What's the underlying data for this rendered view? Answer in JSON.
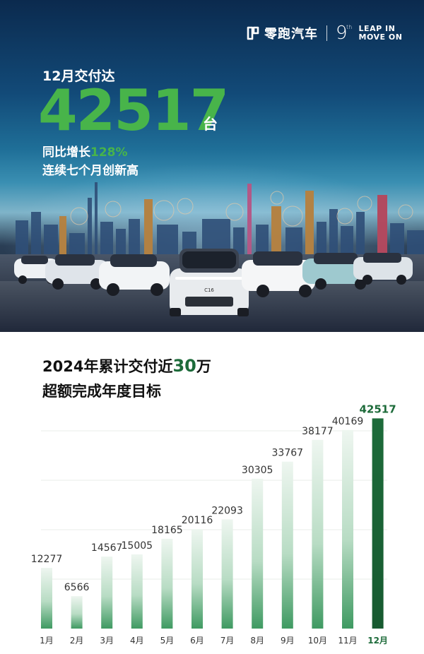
{
  "brand": {
    "name": "零跑汽车",
    "nine": "9",
    "nine_sup": "th",
    "tagline_line1": "LEAP IN",
    "tagline_line2": "MOVE ON",
    "logo_icon": "leapmotor-logo-icon"
  },
  "hero": {
    "subtitle": "12月交付达",
    "big_number": "42517",
    "unit": "台",
    "yoy_prefix": "同比增长",
    "yoy_value": "128%",
    "streak": "连续七个月创新高",
    "car_badge": "C16",
    "accent_color": "#48b44a"
  },
  "chart_section": {
    "title_prefix": "2024年累计交付近",
    "title_highlight": "30",
    "title_suffix": "万",
    "subtitle": "超额完成年度目标"
  },
  "chart_data": {
    "type": "bar",
    "categories": [
      "1月",
      "2月",
      "3月",
      "4月",
      "5月",
      "6月",
      "7月",
      "8月",
      "9月",
      "10月",
      "11月",
      "12月"
    ],
    "values": [
      12277,
      6566,
      14567,
      15005,
      18165,
      20116,
      22093,
      30305,
      33767,
      38177,
      40169,
      42517
    ],
    "value_labels": [
      "12277",
      "6566",
      "14567",
      "15005",
      "18165",
      "20116",
      "22093",
      "30305",
      "33767",
      "38177",
      "40169",
      "42517"
    ],
    "ylim": [
      0,
      45000
    ],
    "highlight_index": 11,
    "grid": true,
    "colors": {
      "bar": "#5fae7c",
      "bar_fade": "#eef6f0",
      "highlight": "#1d6b3a"
    }
  }
}
